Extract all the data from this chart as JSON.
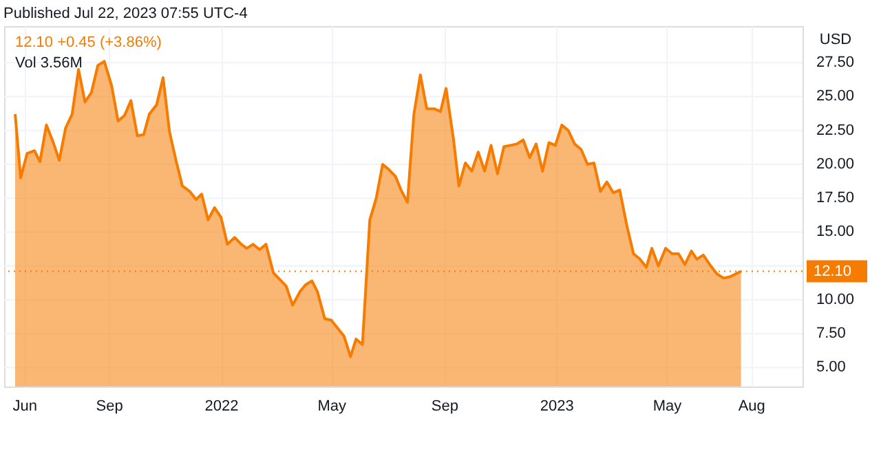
{
  "chart_data": {
    "type": "area",
    "title": "Published Jul 22, 2023 07:55 UTC-4",
    "ylabel": "USD",
    "annotations": [
      "12.10 +0.45 (+3.86%)",
      "Vol 3.56M"
    ],
    "x": [
      "2021-05-22",
      "2021-05-28",
      "2021-06-04",
      "2021-06-12",
      "2021-06-18",
      "2021-06-25",
      "2021-07-02",
      "2021-07-09",
      "2021-07-16",
      "2021-07-23",
      "2021-07-30",
      "2021-08-06",
      "2021-08-13",
      "2021-08-20",
      "2021-08-27",
      "2021-09-04",
      "2021-09-11",
      "2021-09-18",
      "2021-09-25",
      "2021-10-02",
      "2021-10-09",
      "2021-10-15",
      "2021-10-23",
      "2021-10-30",
      "2021-11-06",
      "2021-11-13",
      "2021-11-20",
      "2021-11-28",
      "2021-12-05",
      "2021-12-11",
      "2021-12-18",
      "2021-12-25",
      "2022-01-01",
      "2022-01-08",
      "2022-01-16",
      "2022-01-23",
      "2022-01-29",
      "2022-02-05",
      "2022-02-12",
      "2022-02-19",
      "2022-02-27",
      "2022-03-06",
      "2022-03-13",
      "2022-03-20",
      "2022-03-28",
      "2022-04-03",
      "2022-04-10",
      "2022-04-16",
      "2022-04-24",
      "2022-05-01",
      "2022-05-08",
      "2022-05-15",
      "2022-05-22",
      "2022-05-28",
      "2022-06-04",
      "2022-06-12",
      "2022-06-19",
      "2022-06-26",
      "2022-07-03",
      "2022-07-10",
      "2022-07-16",
      "2022-07-23",
      "2022-07-30",
      "2022-08-06",
      "2022-08-13",
      "2022-08-21",
      "2022-08-28",
      "2022-09-03",
      "2022-09-11",
      "2022-09-17",
      "2022-09-24",
      "2022-10-01",
      "2022-10-08",
      "2022-10-15",
      "2022-10-22",
      "2022-10-29",
      "2022-11-05",
      "2022-11-12",
      "2022-11-19",
      "2022-11-26",
      "2022-12-03",
      "2022-12-10",
      "2022-12-17",
      "2022-12-24",
      "2022-12-31",
      "2023-01-07",
      "2023-01-14",
      "2023-01-21",
      "2023-01-28",
      "2023-02-04",
      "2023-02-11",
      "2023-02-18",
      "2023-02-25",
      "2023-03-04",
      "2023-03-11",
      "2023-03-19",
      "2023-03-26",
      "2023-04-02",
      "2023-04-09",
      "2023-04-15",
      "2023-04-22",
      "2023-04-30",
      "2023-05-07",
      "2023-05-14",
      "2023-05-21",
      "2023-05-28",
      "2023-06-03",
      "2023-06-10",
      "2023-06-17",
      "2023-06-25",
      "2023-07-02",
      "2023-07-09",
      "2023-07-21"
    ],
    "series": [
      {
        "color": "#f57c00",
        "values": [
          23.7,
          19.0,
          20.8,
          21.0,
          20.2,
          22.9,
          21.7,
          20.3,
          22.7,
          23.7,
          27.0,
          24.6,
          25.3,
          27.3,
          27.6,
          25.8,
          23.2,
          23.6,
          24.7,
          22.1,
          22.2,
          23.7,
          24.4,
          26.4,
          22.4,
          20.3,
          18.4,
          18.0,
          17.4,
          17.8,
          15.9,
          16.8,
          16.1,
          14.1,
          14.6,
          14.1,
          13.8,
          14.1,
          13.7,
          14.1,
          12.0,
          11.5,
          11.0,
          9.6,
          10.6,
          11.1,
          11.4,
          10.6,
          8.6,
          8.5,
          7.9,
          7.3,
          5.8,
          7.1,
          6.7,
          15.9,
          17.5,
          20.0,
          19.6,
          19.1,
          18.1,
          17.2,
          23.7,
          26.6,
          24.1,
          24.1,
          23.9,
          25.6,
          21.9,
          18.4,
          20.1,
          19.5,
          20.9,
          19.5,
          21.4,
          19.3,
          21.3,
          21.4,
          21.5,
          21.8,
          20.5,
          21.5,
          19.5,
          21.6,
          21.4,
          22.9,
          22.5,
          21.5,
          21.1,
          20.0,
          20.1,
          18.0,
          18.7,
          17.9,
          18.1,
          15.4,
          13.4,
          13.0,
          12.4,
          13.8,
          12.5,
          13.8,
          13.4,
          13.4,
          12.6,
          13.6,
          13.0,
          13.3,
          12.6,
          11.9,
          11.6,
          11.7,
          12.1
        ]
      }
    ],
    "xlim": [
      "2021-05-10",
      "2023-09-26"
    ],
    "xticks": [
      {
        "value": "2021-06-01",
        "label": "Jun"
      },
      {
        "value": "2021-09-01",
        "label": "Sep"
      },
      {
        "value": "2022-01-01",
        "label": "2022"
      },
      {
        "value": "2022-05-01",
        "label": "May"
      },
      {
        "value": "2022-09-01",
        "label": "Sep"
      },
      {
        "value": "2023-01-01",
        "label": "2023"
      },
      {
        "value": "2023-05-01",
        "label": "May"
      },
      {
        "value": "2023-08-01",
        "label": "Aug"
      }
    ],
    "ylim": [
      3.6,
      30.2
    ],
    "yticks": [
      {
        "value": 5,
        "label": "5.00"
      },
      {
        "value": 7.5,
        "label": "7.50"
      },
      {
        "value": 10,
        "label": "10.00"
      },
      {
        "value": 12.5,
        "label": null
      },
      {
        "value": 15,
        "label": "15.00"
      },
      {
        "value": 17.5,
        "label": "17.50"
      },
      {
        "value": 20,
        "label": "20.00"
      },
      {
        "value": 22.5,
        "label": "22.50"
      },
      {
        "value": 25,
        "label": "25.00"
      },
      {
        "value": 27.5,
        "label": "27.50"
      }
    ],
    "ref_lines": [
      {
        "axis": "y",
        "value": 12.1,
        "label": "12.10",
        "color": "#f57c00",
        "line_style": "dotted"
      }
    ],
    "grid": true
  }
}
